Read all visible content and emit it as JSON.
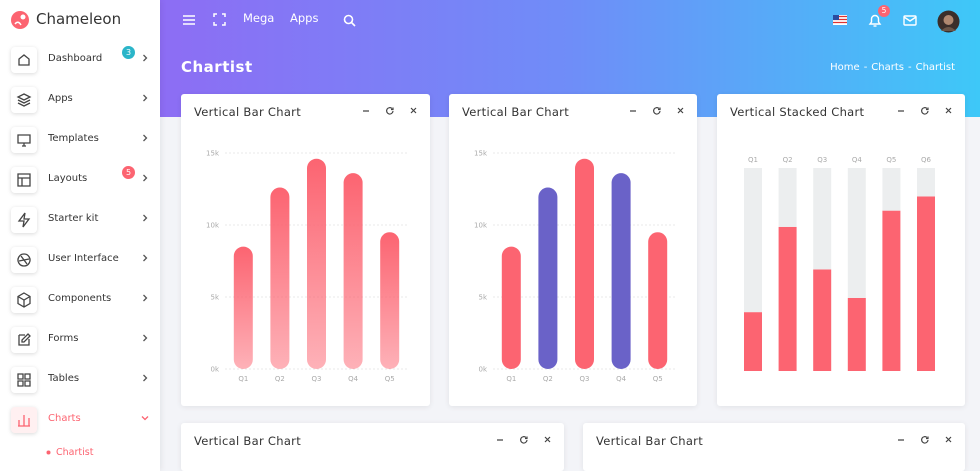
{
  "sidebar": {
    "brand": "Chameleon",
    "menu": [
      {
        "label": "Dashboard",
        "badge": 3,
        "badge_color": "#2bb5c9"
      },
      {
        "label": "Apps"
      },
      {
        "label": "Templates"
      },
      {
        "label": "Layouts",
        "badge": 5,
        "badge_color": "#fc6471"
      },
      {
        "label": "Starter kit"
      },
      {
        "label": "User Interface"
      },
      {
        "label": "Components"
      },
      {
        "label": "Forms"
      },
      {
        "label": "Tables"
      },
      {
        "label": "Charts",
        "active": true
      }
    ],
    "submenu": [
      "Chartist"
    ]
  },
  "topbar": {
    "links": [
      "Mega",
      "Apps"
    ],
    "notifications": 5
  },
  "page": {
    "title": "Chartist",
    "breadcrumb": [
      "Home",
      "Charts",
      "Chartist"
    ],
    "breadcrumb_separator": "-"
  },
  "cards": [
    {
      "title": "Vertical Bar Chart",
      "chart": {
        "type": "bar",
        "gradient": true,
        "color": "#fc6471",
        "categories": [
          "Q1",
          "Q2",
          "Q3",
          "Q4",
          "Q5"
        ],
        "values": [
          8500,
          12600,
          14600,
          13600,
          9500
        ],
        "ylim": [
          0,
          15000
        ],
        "yticks": [
          {
            "value": 0,
            "label": "0k"
          },
          {
            "value": 5000,
            "label": "5k"
          },
          {
            "value": 10000,
            "label": "10k"
          },
          {
            "value": 15000,
            "label": "15k"
          }
        ],
        "grid": true
      }
    },
    {
      "title": "Vertical Bar Chart",
      "chart": {
        "type": "bar",
        "gradient": false,
        "colors": [
          "#fc6471",
          "#6a62c8",
          "#fc6471",
          "#6a62c8",
          "#fc6471"
        ],
        "categories": [
          "Q1",
          "Q2",
          "Q3",
          "Q4",
          "Q5"
        ],
        "values": [
          8500,
          12600,
          14600,
          13600,
          9500
        ],
        "ylim": [
          0,
          15000
        ],
        "yticks": [
          {
            "value": 0,
            "label": "0k"
          },
          {
            "value": 5000,
            "label": "5k"
          },
          {
            "value": 10000,
            "label": "10k"
          },
          {
            "value": 15000,
            "label": "15k"
          }
        ],
        "grid": true
      }
    },
    {
      "title": "Vertical Stacked Chart",
      "chart": {
        "type": "stacked_bar",
        "categories": [
          "Q1",
          "Q2",
          "Q3",
          "Q4",
          "Q5",
          "Q6"
        ],
        "ylim": [
          0,
          100
        ],
        "series": [
          {
            "color": "#fc6471",
            "values": [
              29,
              71,
              50,
              36,
              79,
              86
            ]
          },
          {
            "color": "#eceeef",
            "values": [
              71,
              29,
              50,
              64,
              21,
              14
            ]
          }
        ]
      }
    },
    {
      "title": "Vertical Bar Chart"
    },
    {
      "title": "Vertical Bar Chart"
    }
  ]
}
